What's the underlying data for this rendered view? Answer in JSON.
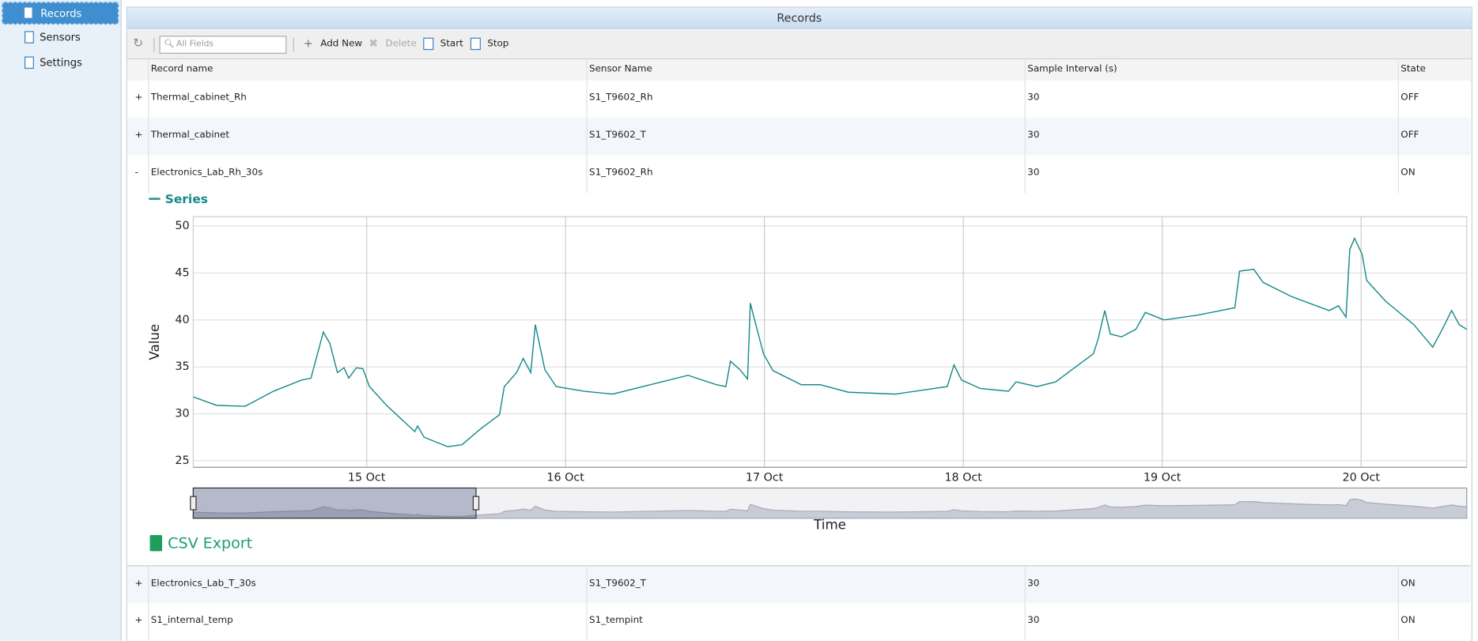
{
  "sidebar": {
    "items": [
      "Records",
      "Sensors",
      "Settings"
    ]
  },
  "panel": {
    "title": "Records"
  },
  "toolbar": {
    "search_placeholder": "All Fields",
    "buttons": [
      "Add New",
      "Delete",
      "Start",
      "Stop"
    ]
  },
  "table": {
    "columns": [
      "Record name",
      "Sensor Name",
      "Sample Interval (s)",
      "State"
    ],
    "rows": [
      {
        "toggle": "+",
        "cells": [
          "Thermal_cabinet_Rh",
          "S1_T9602_Rh",
          30,
          "OFF"
        ]
      },
      {
        "toggle": "+",
        "cells": [
          "Thermal_cabinet",
          "S1_T9602_T",
          30,
          "OFF"
        ]
      },
      {
        "toggle": "-",
        "cells": [
          "Electronics_Lab_Rh_30s",
          "S1_T9602_Rh",
          30,
          "ON"
        ]
      },
      {
        "toggle": "+",
        "cells": [
          "Electronics_Lab_T_30s",
          "S1_T9602_T",
          30,
          "ON"
        ]
      },
      {
        "toggle": "+",
        "cells": [
          "S1_internal_temp",
          "S1_tempint",
          30,
          "ON"
        ]
      }
    ]
  },
  "chart_data": {
    "type": "line",
    "xlabel": "Time",
    "ylabel": "Value",
    "x": [
      14.128,
      14.246,
      14.389,
      14.531,
      14.673,
      14.72,
      14.782,
      14.815,
      14.853,
      14.886,
      14.91,
      14.948,
      14.981,
      15.014,
      15.1,
      15.242,
      15.256,
      15.289,
      15.408,
      15.479,
      15.573,
      15.668,
      15.692,
      15.754,
      15.787,
      15.825,
      15.848,
      15.896,
      15.953,
      16.095,
      16.237,
      16.427,
      16.616,
      16.758,
      16.806,
      16.829,
      16.877,
      16.915,
      16.929,
      16.948,
      16.995,
      17.043,
      17.185,
      17.28,
      17.422,
      17.659,
      17.919,
      17.953,
      17.991,
      18.085,
      18.227,
      18.265,
      18.37,
      18.464,
      18.559,
      18.654,
      18.678,
      18.711,
      18.739,
      18.796,
      18.867,
      18.915,
      19.009,
      19.175,
      19.365,
      19.389,
      19.46,
      19.507,
      19.649,
      19.839,
      19.886,
      19.924,
      19.943,
      19.967,
      20.005,
      20.028,
      20.123,
      20.265,
      20.36,
      20.408,
      20.455,
      20.493,
      20.531
    ],
    "series": [
      {
        "name": "Series",
        "color": "#178a8a",
        "values": [
          31.8,
          30.9,
          30.8,
          32.4,
          33.6,
          33.8,
          38.7,
          37.5,
          34.4,
          34.9,
          33.8,
          34.9,
          34.8,
          32.9,
          30.9,
          28.1,
          28.7,
          27.5,
          26.5,
          26.7,
          28.4,
          29.9,
          32.9,
          34.4,
          35.9,
          34.4,
          39.5,
          34.7,
          32.9,
          32.4,
          32.1,
          33.1,
          34.1,
          33.1,
          32.9,
          35.6,
          34.7,
          33.7,
          41.8,
          40.2,
          36.4,
          34.6,
          33.1,
          33.1,
          32.3,
          32.1,
          32.9,
          35.2,
          33.6,
          32.7,
          32.4,
          33.4,
          32.9,
          33.4,
          34.9,
          36.4,
          38.0,
          41.0,
          38.5,
          38.2,
          39.0,
          40.8,
          40.0,
          40.5,
          41.3,
          45.2,
          45.4,
          44.0,
          42.5,
          41.0,
          41.5,
          40.3,
          47.5,
          48.7,
          47.0,
          44.2,
          42.0,
          39.5,
          37.1,
          39.0,
          41.0,
          39.5,
          39.0
        ]
      }
    ],
    "xlim": [
      14.128,
      20.531
    ],
    "xticks": [
      {
        "value": 15,
        "label": "15 Oct"
      },
      {
        "value": 16,
        "label": "16 Oct"
      },
      {
        "value": 17,
        "label": "17 Oct"
      },
      {
        "value": 18,
        "label": "18 Oct"
      },
      {
        "value": 19,
        "label": "19 Oct"
      },
      {
        "value": 20,
        "label": "20 Oct"
      }
    ],
    "ylim": [
      24.3,
      51
    ],
    "yticks": [
      25,
      30,
      35,
      40,
      45,
      50
    ],
    "grid": true
  },
  "csv_export": "CSV Export"
}
